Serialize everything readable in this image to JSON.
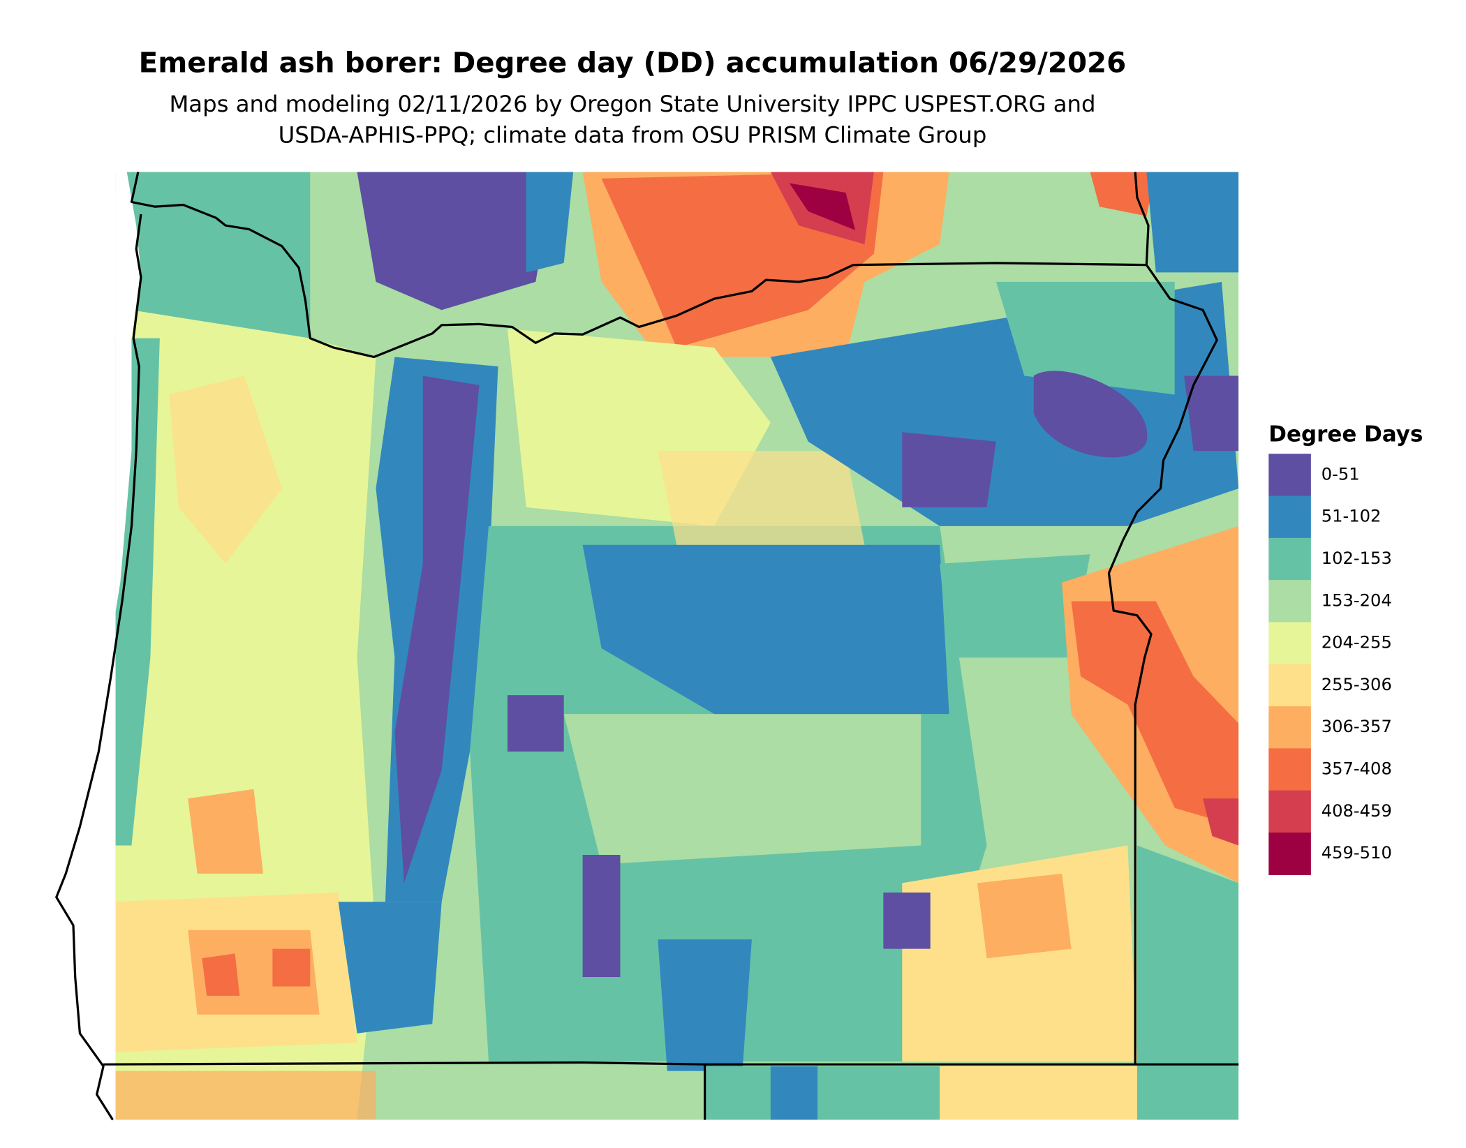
{
  "title": "Emerald ash borer: Degree day (DD) accumulation 06/29/2026",
  "subtitle": [
    "Maps and modeling 02/11/2026 by Oregon State University IPPC USPEST.ORG and",
    "USDA-APHIS-PPQ; climate data from OSU PRISM Climate Group"
  ],
  "legend": {
    "title": "Degree Days",
    "items": [
      {
        "label": "0-51",
        "color": "#5e4fa2"
      },
      {
        "label": "51-102",
        "color": "#3288bd"
      },
      {
        "label": "102-153",
        "color": "#66c2a5"
      },
      {
        "label": "153-204",
        "color": "#abdda4"
      },
      {
        "label": "204-255",
        "color": "#e6f598"
      },
      {
        "label": "255-306",
        "color": "#fee08b"
      },
      {
        "label": "306-357",
        "color": "#fdae61"
      },
      {
        "label": "357-408",
        "color": "#f46d43"
      },
      {
        "label": "408-459",
        "color": "#d53e4f"
      },
      {
        "label": "459-510",
        "color": "#9e0142"
      }
    ]
  }
}
